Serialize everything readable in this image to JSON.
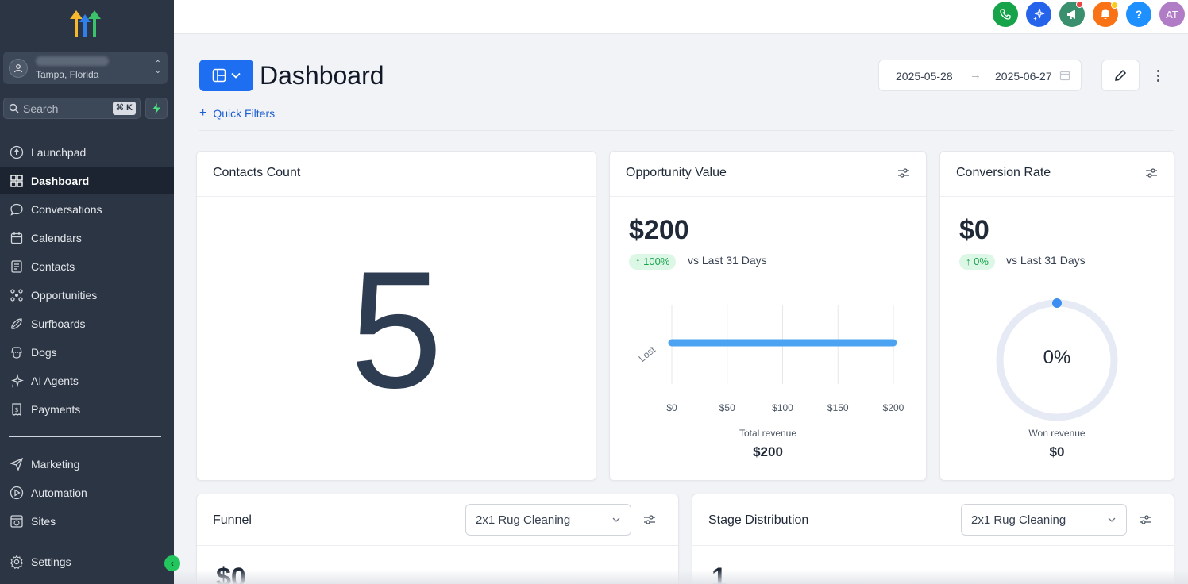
{
  "account": {
    "location": "Tampa, Florida"
  },
  "search": {
    "placeholder": "Search",
    "shortcut": "⌘ K"
  },
  "sidebar": {
    "items": [
      {
        "label": "Launchpad",
        "icon": "launchpad-icon"
      },
      {
        "label": "Dashboard",
        "icon": "dashboard-icon",
        "active": true
      },
      {
        "label": "Conversations",
        "icon": "chat-icon"
      },
      {
        "label": "Calendars",
        "icon": "calendar-icon"
      },
      {
        "label": "Contacts",
        "icon": "contacts-icon"
      },
      {
        "label": "Opportunities",
        "icon": "opportunities-icon"
      },
      {
        "label": "Surfboards",
        "icon": "surfboard-icon"
      },
      {
        "label": "Dogs",
        "icon": "dog-icon"
      },
      {
        "label": "AI Agents",
        "icon": "sparkle-icon"
      },
      {
        "label": "Payments",
        "icon": "receipt-icon"
      }
    ],
    "secondary": [
      {
        "label": "Marketing",
        "icon": "send-icon"
      },
      {
        "label": "Automation",
        "icon": "play-circle-icon"
      },
      {
        "label": "Sites",
        "icon": "globe-window-icon"
      }
    ],
    "settings_label": "Settings"
  },
  "topbar": {
    "avatar_initials": "AT",
    "help_label": "?",
    "colors": {
      "phone": "#16a34a",
      "ai": "#2563eb",
      "announce": "#3a8f6e",
      "notify": "#f97316",
      "help": "#1e90ff",
      "avatar": "#b07cc6"
    }
  },
  "header": {
    "title": "Dashboard",
    "date_start": "2025-05-28",
    "date_end": "2025-06-27",
    "quick_filters_label": "Quick Filters"
  },
  "contacts_card": {
    "title": "Contacts Count",
    "value": "5"
  },
  "opportunity_card": {
    "title": "Opportunity Value",
    "value": "$200",
    "change": "100%",
    "comparison": "vs Last 31 Days",
    "footer_label": "Total revenue",
    "footer_value": "$200"
  },
  "conversion_card": {
    "title": "Conversion Rate",
    "value": "$0",
    "change": "0%",
    "comparison": "vs Last 31 Days",
    "gauge_label": "0%",
    "gauge_fraction": 0,
    "footer_label": "Won revenue",
    "footer_value": "$0"
  },
  "funnel_card": {
    "title": "Funnel",
    "pipeline": "2x1 Rug Cleaning",
    "value": "$0"
  },
  "stage_card": {
    "title": "Stage Distribution",
    "pipeline": "2x1 Rug Cleaning",
    "value": "1"
  },
  "chart_data": {
    "type": "bar",
    "orientation": "horizontal",
    "categories": [
      "Lost"
    ],
    "values": [
      200
    ],
    "x_ticks": [
      "$0",
      "$50",
      "$100",
      "$150",
      "$200"
    ],
    "xlim": [
      0,
      200
    ],
    "bar_color": "#4ba3f2",
    "grid": true
  }
}
